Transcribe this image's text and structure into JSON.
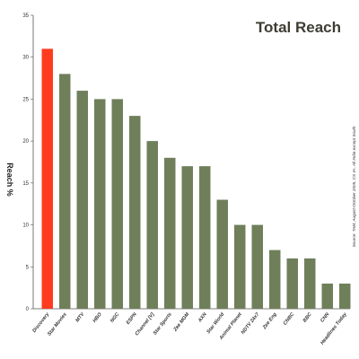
{
  "chart_data": {
    "type": "bar",
    "title": "Total Reach",
    "ylabel": "Reach %",
    "xlabel": "",
    "ylim": [
      0,
      35
    ],
    "yticks": [
      0,
      5,
      10,
      15,
      20,
      25,
      30,
      35
    ],
    "grid": false,
    "categories": [
      "Discovery",
      "Star Movies",
      "MTV",
      "HBO",
      "NGC",
      "ESPN",
      "Channel [V]",
      "Star Sports",
      "Zee MGM",
      "AXN",
      "Star World",
      "Animal Planet",
      "NDTV 24x7",
      "Zee Eng",
      "CNBC",
      "BBC",
      "CNN",
      "Headlines Today"
    ],
    "values": [
      31,
      28,
      26,
      25,
      25,
      23,
      20,
      18,
      17,
      17,
      13,
      10,
      10,
      7,
      6,
      6,
      3,
      3
    ],
    "highlight_category": "Discovery",
    "colors": {
      "highlight_bar": "#ff3b1f",
      "bar": "#6f7f5a",
      "highlight_label": "#ff5a1f",
      "title": "#3d3d33"
    },
    "source_note": "Source: TAM, August-October 2005, CS 4+, All India except South"
  }
}
